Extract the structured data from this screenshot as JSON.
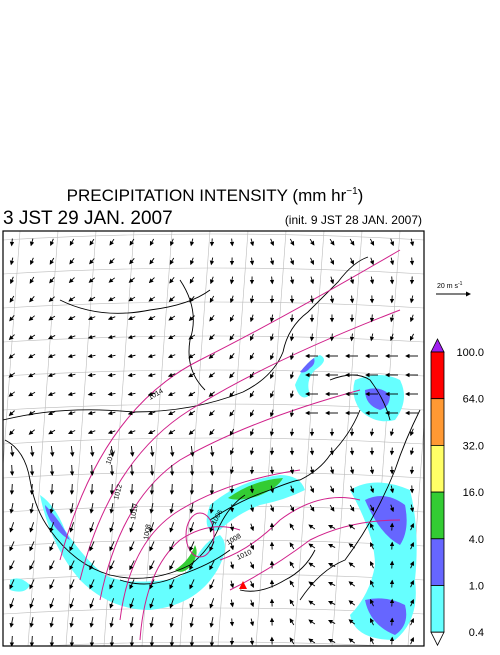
{
  "header": {
    "title": "PRECIPITATION INTENSITY (mm hr",
    "title_exponent": "−1",
    "title_close": ")",
    "valid_time": "3 JST 29 JAN. 2007",
    "init_time": "(init. 9 JST 28 JAN. 2007)"
  },
  "vector_legend": {
    "label": "20 m s",
    "exponent": "-1"
  },
  "colorbar": {
    "labels": [
      "100.0",
      "64.0",
      "32.0",
      "16.0",
      "4.0",
      "1.0",
      "0.4"
    ],
    "colors": [
      "#a020f0",
      "#ff0000",
      "#ff9933",
      "#ffff66",
      "#33cc33",
      "#6666ff",
      "#66ffff",
      "#ffffff"
    ]
  },
  "isobars": {
    "labels": [
      "1014",
      "1012",
      "1012",
      "1010",
      "1008",
      "1006",
      "1008",
      "1010"
    ]
  }
}
